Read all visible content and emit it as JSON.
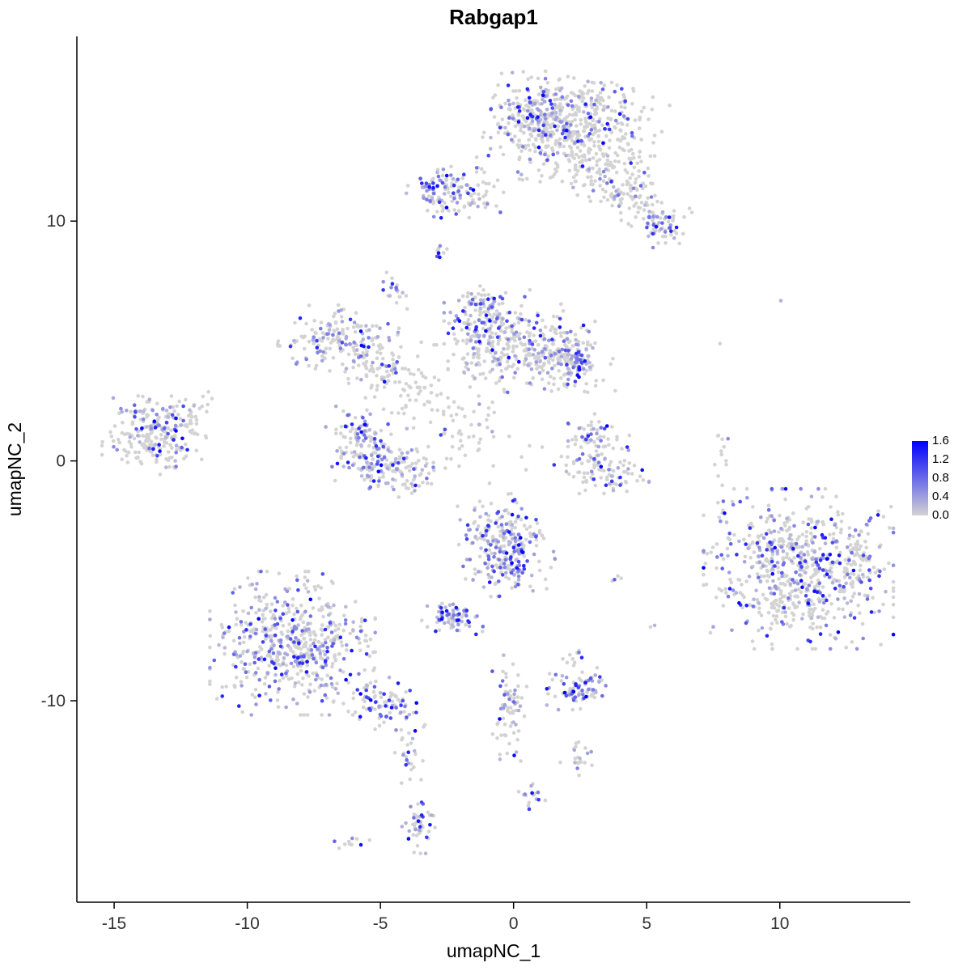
{
  "title": "Rabgap1",
  "axes": {
    "x": {
      "label": "umapNC_1",
      "tick_values": [
        -15,
        -10,
        -5,
        0,
        5,
        10
      ],
      "tick_labels": [
        "-15",
        "-10",
        "-5",
        "0",
        "5",
        "10"
      ]
    },
    "y": {
      "label": "umapNC_2",
      "tick_values": [
        -10,
        0,
        10
      ],
      "tick_labels": [
        "-10",
        "0",
        "10"
      ]
    }
  },
  "legend": {
    "labels": [
      "1.6",
      "1.2",
      "0.8",
      "0.4",
      "0.0"
    ],
    "min": 0.0,
    "max": 1.6
  },
  "chart_data": {
    "type": "scatter",
    "title": "Rabgap1",
    "xlabel": "umapNC_1",
    "ylabel": "umapNC_2",
    "xlim": [
      -16.4,
      14.9
    ],
    "ylim": [
      -18.4,
      17.7
    ],
    "grid": false,
    "legend_position": "right",
    "seed": 7,
    "point_radius": 2.3,
    "color_scale": {
      "low": "#d3d3d3",
      "high": "#0000ff",
      "domain": [
        0,
        1.6
      ]
    },
    "clusters": [
      {
        "name": "top-blob-upper-left",
        "cx": 1.1,
        "cy": 14.5,
        "sx": 0.85,
        "sy": 0.75,
        "rot": 0,
        "n": 210,
        "expr": 0.5
      },
      {
        "name": "top-blob-main",
        "cx": 2.2,
        "cy": 13.6,
        "sx": 1.4,
        "sy": 1.0,
        "rot": -15,
        "n": 380,
        "expr": 0.15
      },
      {
        "name": "top-blob-upper-right",
        "cx": 3.2,
        "cy": 14.9,
        "sx": 0.7,
        "sy": 0.5,
        "rot": 0,
        "n": 80,
        "expr": 0.2
      },
      {
        "name": "top-right-tail",
        "cx": 4.3,
        "cy": 11.3,
        "sx": 1.2,
        "sy": 0.55,
        "rot": -35,
        "n": 150,
        "expr": 0.15
      },
      {
        "name": "top-right-tail-tip",
        "cx": 5.6,
        "cy": 9.7,
        "sx": 0.4,
        "sy": 0.35,
        "rot": 0,
        "n": 45,
        "expr": 0.45
      },
      {
        "name": "top-left-arm",
        "cx": -2.15,
        "cy": 11.2,
        "sx": 0.8,
        "sy": 0.5,
        "rot": -10,
        "n": 120,
        "expr": 0.4
      },
      {
        "name": "top-left-arm-tip",
        "cx": -3.0,
        "cy": 11.4,
        "sx": 0.25,
        "sy": 0.3,
        "rot": 0,
        "n": 25,
        "expr": 0.55
      },
      {
        "name": "isolated-pair",
        "cx": -2.75,
        "cy": 8.7,
        "sx": 0.15,
        "sy": 0.2,
        "rot": 0,
        "n": 12,
        "expr": 0.5
      },
      {
        "name": "small-upper-mid",
        "cx": -4.5,
        "cy": 7.1,
        "sx": 0.22,
        "sy": 0.33,
        "rot": 0,
        "n": 20,
        "expr": 0.6
      },
      {
        "name": "mid-left-blob",
        "cx": -6.6,
        "cy": 5.1,
        "sx": 0.95,
        "sy": 0.6,
        "rot": -10,
        "n": 170,
        "expr": 0.3
      },
      {
        "name": "mid-left-arc",
        "cx": -5.1,
        "cy": 3.8,
        "sx": 0.75,
        "sy": 0.45,
        "rot": -30,
        "n": 70,
        "expr": 0.2
      },
      {
        "name": "mid-connector-sparse",
        "cx": -3.6,
        "cy": 3.0,
        "sx": 0.9,
        "sy": 0.8,
        "rot": 0,
        "n": 45,
        "expr": 0.1
      },
      {
        "name": "center-left-lobe",
        "cx": -1.0,
        "cy": 5.4,
        "sx": 0.7,
        "sy": 0.85,
        "rot": 0,
        "n": 190,
        "expr": 0.45
      },
      {
        "name": "center-top-tip",
        "cx": -1.1,
        "cy": 6.6,
        "sx": 0.3,
        "sy": 0.3,
        "rot": 0,
        "n": 30,
        "expr": 0.4
      },
      {
        "name": "center-right-lobe",
        "cx": 1.7,
        "cy": 4.4,
        "sx": 0.85,
        "sy": 0.65,
        "rot": -20,
        "n": 170,
        "expr": 0.35
      },
      {
        "name": "center-right-edge",
        "cx": 2.4,
        "cy": 4.2,
        "sx": 0.25,
        "sy": 0.55,
        "rot": 0,
        "n": 45,
        "expr": 0.6
      },
      {
        "name": "center-fill",
        "cx": 0.3,
        "cy": 4.7,
        "sx": 1.2,
        "sy": 0.8,
        "rot": 0,
        "n": 140,
        "expr": 0.1
      },
      {
        "name": "below-center-sparse",
        "cx": -1.8,
        "cy": 1.6,
        "sx": 0.9,
        "sy": 0.9,
        "rot": 0,
        "n": 55,
        "expr": 0.08
      },
      {
        "name": "crescent-left",
        "cx": -5.8,
        "cy": 0.7,
        "sx": 0.55,
        "sy": 0.8,
        "rot": 15,
        "n": 130,
        "expr": 0.45
      },
      {
        "name": "crescent-bottom",
        "cx": -4.4,
        "cy": -0.3,
        "sx": 0.75,
        "sy": 0.5,
        "rot": -20,
        "n": 115,
        "expr": 0.35
      },
      {
        "name": "far-left-top",
        "cx": -13.2,
        "cy": 1.7,
        "sx": 0.85,
        "sy": 0.45,
        "rot": 0,
        "n": 100,
        "expr": 0.5
      },
      {
        "name": "far-left-bottom",
        "cx": -13.5,
        "cy": 0.7,
        "sx": 0.85,
        "sy": 0.55,
        "rot": 0,
        "n": 150,
        "expr": 0.15
      },
      {
        "name": "far-left-outliers",
        "cx": -11.9,
        "cy": 2.3,
        "sx": 0.5,
        "sy": 0.5,
        "rot": 0,
        "n": 12,
        "expr": 0.1
      },
      {
        "name": "right-mid-top",
        "cx": 3.2,
        "cy": 1.0,
        "sx": 0.5,
        "sy": 0.45,
        "rot": 0,
        "n": 55,
        "expr": 0.3
      },
      {
        "name": "right-mid-bottom",
        "cx": 3.4,
        "cy": -0.5,
        "sx": 0.75,
        "sy": 0.5,
        "rot": -15,
        "n": 95,
        "expr": 0.35
      },
      {
        "name": "right-sparse-column",
        "cx": 7.85,
        "cy": -0.6,
        "sx": 0.2,
        "sy": 1.2,
        "rot": 0,
        "n": 15,
        "expr": 0.1
      },
      {
        "name": "center-low-dense",
        "cx": -0.3,
        "cy": -3.5,
        "sx": 0.75,
        "sy": 0.9,
        "rot": 10,
        "n": 270,
        "expr": 0.5
      },
      {
        "name": "small-dense-left",
        "cx": -2.3,
        "cy": -6.5,
        "sx": 0.5,
        "sy": 0.33,
        "rot": 0,
        "n": 75,
        "expr": 0.55
      },
      {
        "name": "bottom-left-big",
        "cx": -8.3,
        "cy": -7.6,
        "sx": 1.35,
        "sy": 1.3,
        "rot": 0,
        "n": 560,
        "expr": 0.35
      },
      {
        "name": "bottom-left-tail",
        "cx": -4.8,
        "cy": -10.2,
        "sx": 0.8,
        "sy": 0.45,
        "rot": -35,
        "n": 95,
        "expr": 0.4
      },
      {
        "name": "bottom-thread",
        "cx": -3.9,
        "cy": -12.1,
        "sx": 0.25,
        "sy": 0.7,
        "rot": 0,
        "n": 25,
        "expr": 0.3
      },
      {
        "name": "bottom-small",
        "cx": -3.5,
        "cy": -15.1,
        "sx": 0.3,
        "sy": 0.55,
        "rot": 0,
        "n": 45,
        "expr": 0.45
      },
      {
        "name": "bottom-tiny",
        "cx": -6.1,
        "cy": -15.9,
        "sx": 0.3,
        "sy": 0.15,
        "rot": 0,
        "n": 10,
        "expr": 0.3
      },
      {
        "name": "center-bottom-column",
        "cx": -0.2,
        "cy": -10.4,
        "sx": 0.3,
        "sy": 1.0,
        "rot": 0,
        "n": 70,
        "expr": 0.35
      },
      {
        "name": "small-right-cluster",
        "cx": 2.4,
        "cy": -9.5,
        "sx": 0.5,
        "sy": 0.38,
        "rot": 0,
        "n": 85,
        "expr": 0.5
      },
      {
        "name": "dots-above-small-right",
        "cx": 2.3,
        "cy": -8.2,
        "sx": 0.3,
        "sy": 0.25,
        "rot": 0,
        "n": 10,
        "expr": 0.15
      },
      {
        "name": "small-bits",
        "cx": 2.4,
        "cy": -12.4,
        "sx": 0.28,
        "sy": 0.4,
        "rot": 0,
        "n": 22,
        "expr": 0.4
      },
      {
        "name": "tiny-bits",
        "cx": 0.7,
        "cy": -13.9,
        "sx": 0.22,
        "sy": 0.28,
        "rot": 0,
        "n": 16,
        "expr": 0.5
      },
      {
        "name": "right-big-blob",
        "cx": 10.7,
        "cy": -4.5,
        "sx": 1.55,
        "sy": 1.45,
        "rot": 0,
        "n": 680,
        "expr": 0.35
      },
      {
        "name": "right-big-east-edge",
        "cx": 13.0,
        "cy": -4.2,
        "sx": 0.4,
        "sy": 0.7,
        "rot": 0,
        "n": 40,
        "expr": 0.25
      },
      {
        "name": "single-high",
        "cx": 10.0,
        "cy": 6.7,
        "sx": 0.05,
        "sy": 0.05,
        "rot": 0,
        "n": 1,
        "expr": 1.0
      },
      {
        "name": "single-grey",
        "cx": 7.7,
        "cy": 4.9,
        "sx": 0.05,
        "sy": 0.05,
        "rot": 0,
        "n": 1,
        "expr": 0.0
      },
      {
        "name": "pair-low-right",
        "cx": 5.2,
        "cy": -6.9,
        "sx": 0.06,
        "sy": 0.06,
        "rot": 0,
        "n": 2,
        "expr": 0.6
      },
      {
        "name": "few-mid-right",
        "cx": 3.9,
        "cy": -5.0,
        "sx": 0.15,
        "sy": 0.2,
        "rot": 0,
        "n": 4,
        "expr": 0.2
      },
      {
        "name": "few-right-column-top",
        "cx": 7.9,
        "cy": 0.9,
        "sx": 0.1,
        "sy": 0.3,
        "rot": 0,
        "n": 3,
        "expr": 0.1
      },
      {
        "name": "scatter-noise",
        "cx": 0.0,
        "cy": 1.5,
        "sx": 2.5,
        "sy": 1.5,
        "rot": 0,
        "n": 20,
        "expr": 0.1
      }
    ]
  }
}
